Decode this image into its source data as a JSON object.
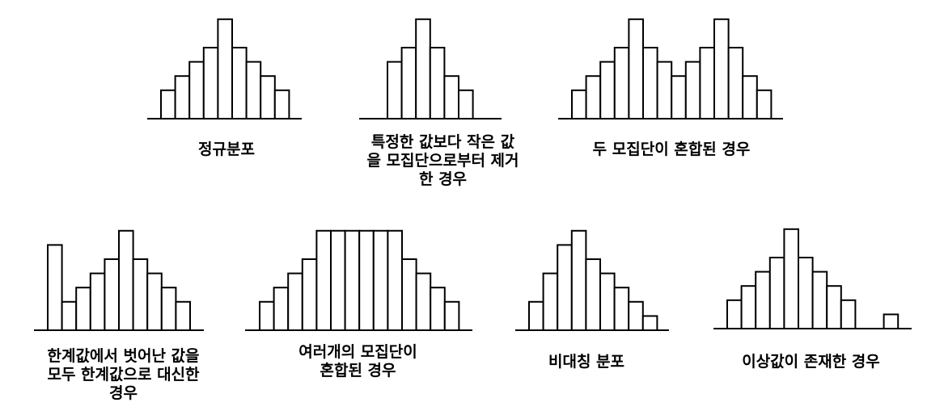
{
  "chart_data": [
    {
      "type": "bar",
      "caption": "정규분포",
      "values": [
        2,
        3,
        4,
        5,
        7,
        5,
        4,
        3,
        2
      ]
    },
    {
      "type": "bar",
      "caption": "특정한 값보다 작은 값\n을 모집단으로부터 제거\n한 경우",
      "values": [
        4,
        5,
        7,
        5,
        3,
        2
      ]
    },
    {
      "type": "bar",
      "caption": "두 모집단이 혼합된 경우",
      "values": [
        2,
        3,
        4,
        5,
        7,
        5,
        4,
        3,
        4,
        5,
        7,
        5,
        3,
        2
      ]
    },
    {
      "type": "bar",
      "caption": "한계값에서 벗어난 값을\n모두 한계값으로 대신한\n경우",
      "values": [
        6,
        2,
        3,
        4,
        5,
        7,
        5,
        4,
        3,
        2
      ]
    },
    {
      "type": "bar",
      "caption": "여러개의 모집단이\n혼합된 경우",
      "values": [
        2,
        3,
        4,
        5,
        7,
        7,
        7,
        7,
        7,
        7,
        5,
        4,
        3,
        2
      ]
    },
    {
      "type": "bar",
      "caption": "비대칭 분포",
      "values": [
        2,
        4,
        6,
        7,
        5,
        4,
        3,
        2,
        1
      ]
    },
    {
      "type": "bar",
      "caption": "이상값이 존재한 경우",
      "values": [
        2,
        3,
        4,
        5,
        7,
        5,
        4,
        3,
        2,
        0,
        0,
        1
      ]
    }
  ]
}
